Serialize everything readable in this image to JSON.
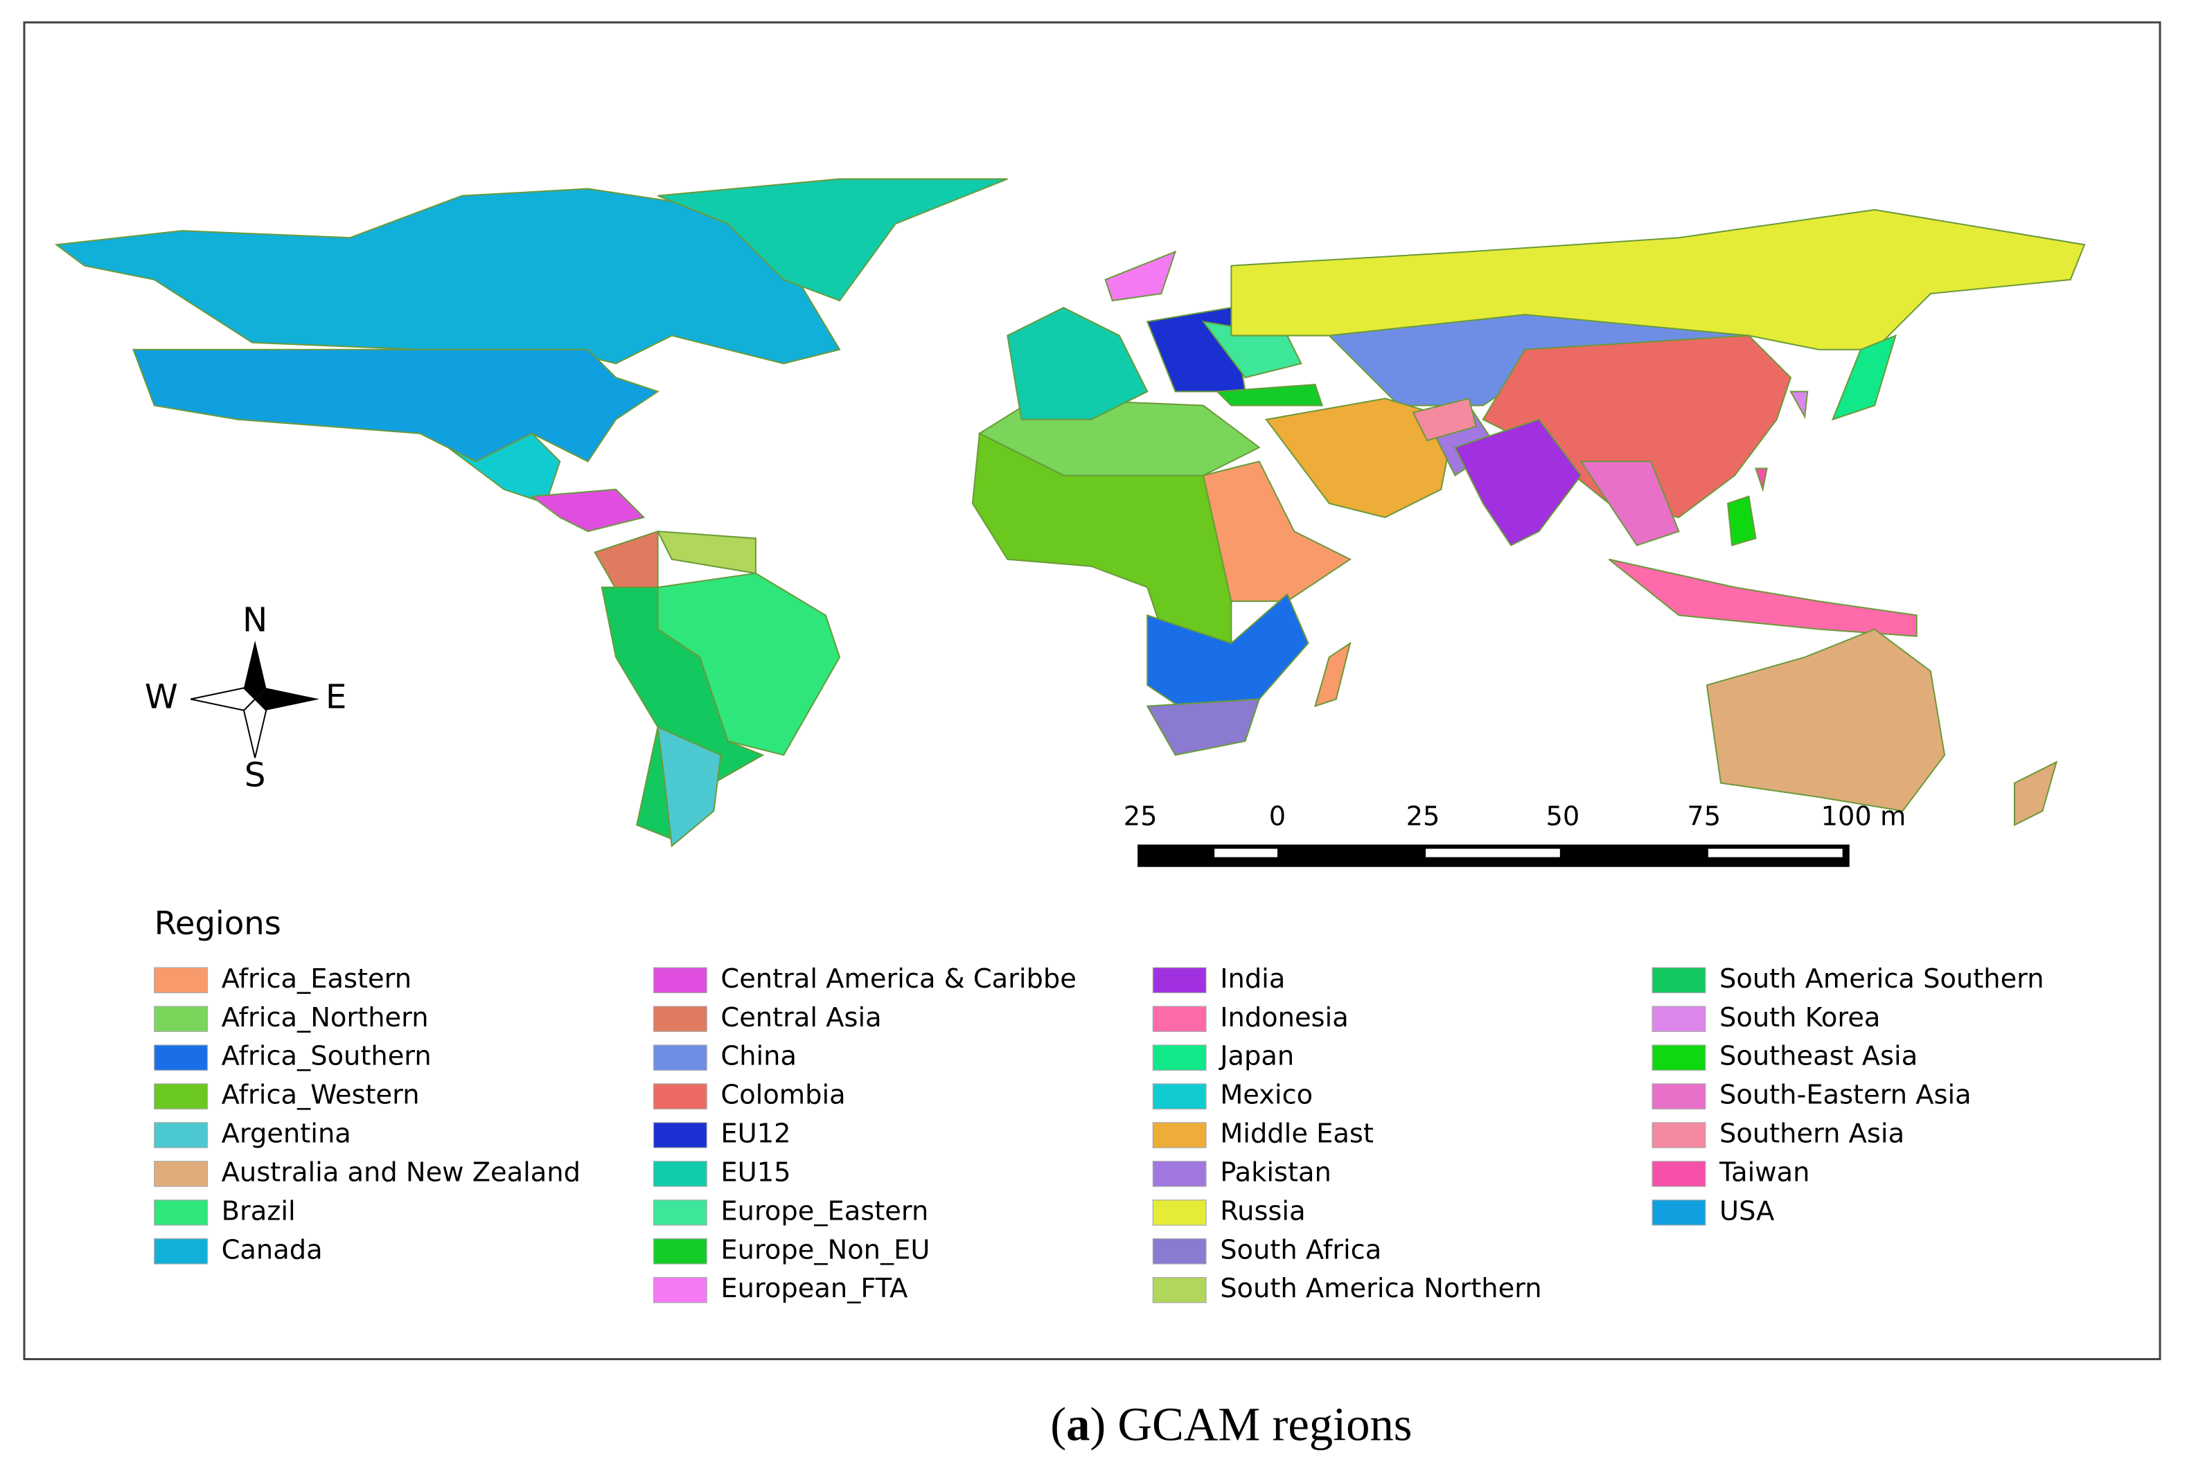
{
  "legend": {
    "title": "Regions",
    "items": [
      {
        "name": "Africa_Eastern",
        "color": "#f99a6a"
      },
      {
        "name": "Africa_Northern",
        "color": "#7ad65a"
      },
      {
        "name": "Africa_Southern",
        "color": "#1a6fe8"
      },
      {
        "name": "Africa_Western",
        "color": "#6ac81e"
      },
      {
        "name": "Argentina",
        "color": "#4cc9d0"
      },
      {
        "name": "Australia and New Zealand",
        "color": "#e0ac7a"
      },
      {
        "name": "Brazil",
        "color": "#2ee67a"
      },
      {
        "name": "Canada",
        "color": "#11b0d8"
      },
      {
        "name": "Central America & Caribbe",
        "color": "#e04ee0"
      },
      {
        "name": "Central Asia",
        "color": "#e07a60"
      },
      {
        "name": "China",
        "color": "#6e8ee6"
      },
      {
        "name": "Colombia",
        "color": "#ec6a64"
      },
      {
        "name": "EU12",
        "color": "#1a30d0"
      },
      {
        "name": "EU15",
        "color": "#10ccaa"
      },
      {
        "name": "Europe_Eastern",
        "color": "#3ee69a"
      },
      {
        "name": "Europe_Non_EU",
        "color": "#14cc28"
      },
      {
        "name": "European_FTA",
        "color": "#f47af4"
      },
      {
        "name": "India",
        "color": "#a030e0"
      },
      {
        "name": "Indonesia",
        "color": "#ff6aaa"
      },
      {
        "name": "Japan",
        "color": "#10e88a"
      },
      {
        "name": "Mexico",
        "color": "#10ccd0"
      },
      {
        "name": "Middle East",
        "color": "#eeac38"
      },
      {
        "name": "Pakistan",
        "color": "#a078e0"
      },
      {
        "name": "Russia",
        "color": "#e4ec38"
      },
      {
        "name": "South Africa",
        "color": "#8a7ad0"
      },
      {
        "name": "South America Northern",
        "color": "#b0d65a"
      },
      {
        "name": "South America Southern",
        "color": "#14c860"
      },
      {
        "name": "South Korea",
        "color": "#dc86ec"
      },
      {
        "name": "Southeast Asia",
        "color": "#10d810"
      },
      {
        "name": "South-Eastern Asia",
        "color": "#e870c8"
      },
      {
        "name": "Southern Asia",
        "color": "#f48aa0"
      },
      {
        "name": "Taiwan",
        "color": "#f650a8"
      },
      {
        "name": "USA",
        "color": "#10a0e0"
      }
    ]
  },
  "compass": {
    "north": "N",
    "south": "S",
    "west": "W",
    "east": "E"
  },
  "scale": {
    "labels": [
      "25",
      "0",
      "25",
      "50",
      "75",
      "100 m"
    ]
  },
  "caption": {
    "parts": [
      "(",
      "a",
      ") GCAM regions"
    ]
  }
}
